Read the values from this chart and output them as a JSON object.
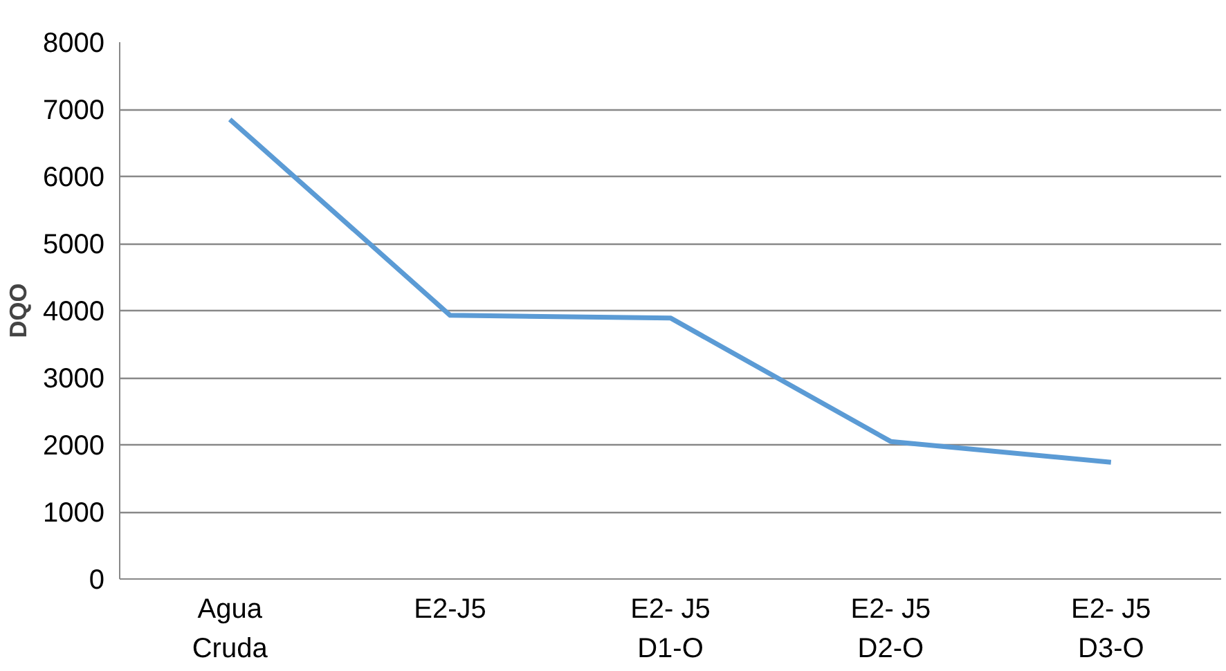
{
  "chart_data": {
    "type": "line",
    "ylabel": "DQO",
    "categories": [
      "Agua\nCruda",
      "E2-J5",
      "E2- J5\nD1-O",
      "E2- J5\nD2-O",
      "E2- J5\nD3-O"
    ],
    "series": [
      {
        "color": "#5b9bd5",
        "values": [
          6850,
          3930,
          3890,
          2050,
          1740
        ]
      }
    ],
    "ylim": [
      0,
      8000
    ],
    "yticks": [
      0,
      1000,
      2000,
      3000,
      4000,
      5000,
      6000,
      7000,
      8000
    ],
    "grid": "y",
    "line_style": "solid",
    "marker": "none"
  }
}
